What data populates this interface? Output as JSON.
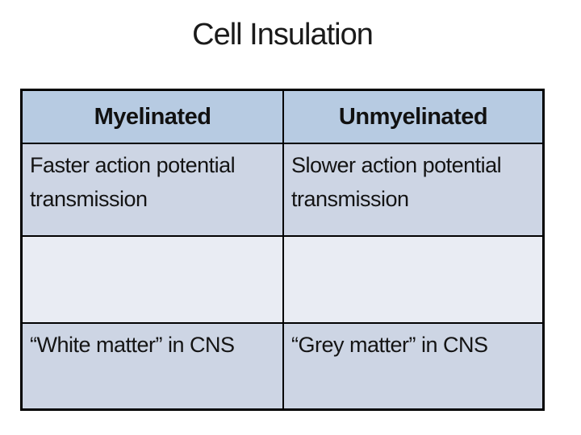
{
  "page": {
    "background_color": "#ffffff",
    "kind": "presentation-slide"
  },
  "title": "Cell Insulation",
  "table": {
    "border_color": "#000000",
    "text_color": "#141414",
    "header": {
      "bg": "#b7cbe2",
      "columns": [
        "Myelinated",
        "Unmyelinated"
      ]
    },
    "rows": [
      {
        "bg": "#cdd5e4",
        "cells": [
          "Faster action potential transmission",
          "Slower action potential transmission"
        ]
      },
      {
        "bg": "#e9ecf3",
        "cells": [
          "",
          ""
        ]
      },
      {
        "bg": "#cdd5e4",
        "cells": [
          "“White matter” in CNS",
          "“Grey matter” in CNS"
        ]
      }
    ]
  }
}
